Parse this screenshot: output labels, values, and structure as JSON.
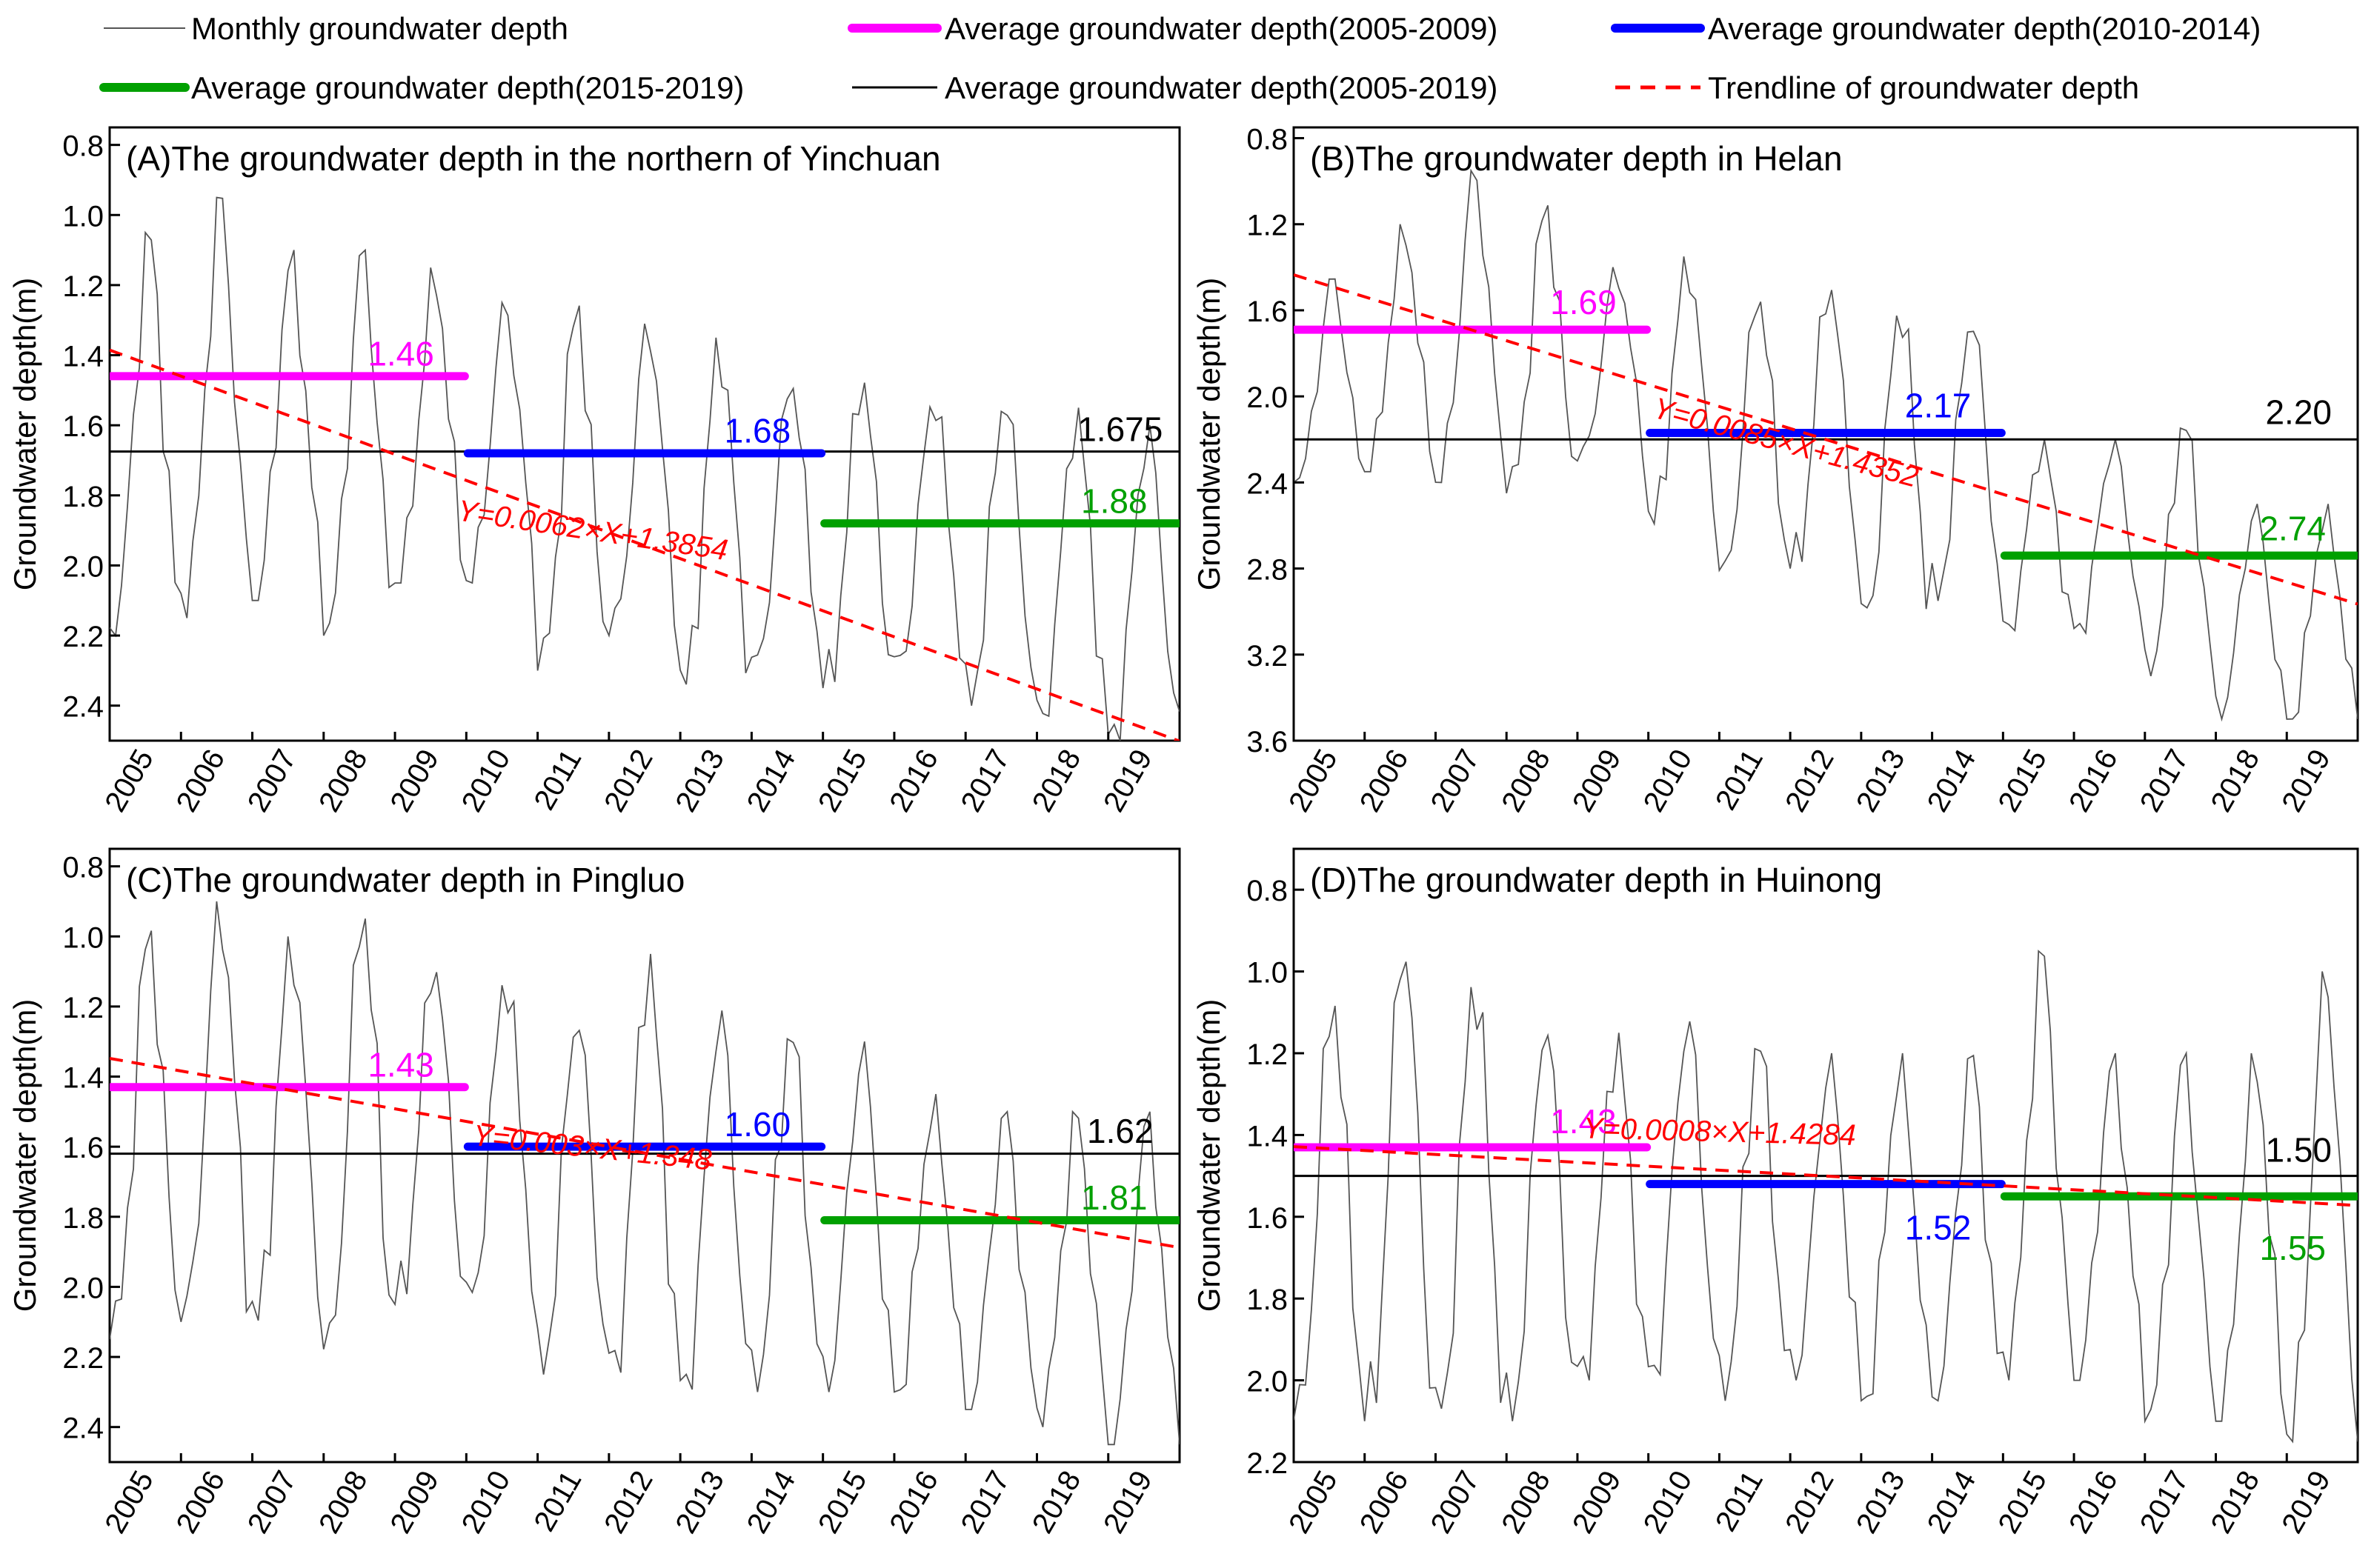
{
  "legend": [
    {
      "label": "Monthly groundwater depth",
      "kind": "monthly",
      "color": "#555555"
    },
    {
      "label": "Average groundwater depth(2005-2009)",
      "kind": "avg",
      "color": "#ff00ff"
    },
    {
      "label": "Average groundwater depth(2010-2014)",
      "kind": "avg",
      "color": "#0000ff"
    },
    {
      "label": "Average groundwater depth(2015-2019)",
      "kind": "avg",
      "color": "#00a000"
    },
    {
      "label": "Average groundwater depth(2005-2019)",
      "kind": "avgall",
      "color": "#000000"
    },
    {
      "label": "Trendline of groundwater depth",
      "kind": "trend",
      "color": "#ff0000"
    }
  ],
  "chart_data": [
    {
      "type": "line",
      "title": "(A)The groundwater depth in the northern of Yinchuan",
      "ylabel": "Groundwater depth(m)",
      "ylim": [
        0.75,
        2.5
      ],
      "y_inverted": true,
      "yticks": [
        "0.8",
        "1.0",
        "1.2",
        "1.4",
        "1.6",
        "1.8",
        "2.0",
        "2.2",
        "2.4"
      ],
      "xticks": [
        "2005",
        "2006",
        "2007",
        "2008",
        "2009",
        "2010",
        "2011",
        "2012",
        "2013",
        "2014",
        "2015",
        "2016",
        "2017",
        "2018",
        "2019"
      ],
      "period_averages": [
        {
          "period": "2005-2009",
          "value": 1.46,
          "label": "1.46"
        },
        {
          "period": "2010-2014",
          "value": 1.68,
          "label": "1.68"
        },
        {
          "period": "2015-2019",
          "value": 1.88,
          "label": "1.88"
        }
      ],
      "overall_average": {
        "period": "2005-2019",
        "value": 1.675,
        "label": "1.675"
      },
      "trendline": {
        "slope": 0.0062,
        "intercept": 1.3854,
        "equation": "Y=0.0062×X+1.3854"
      },
      "monthly_series": {
        "months": 180,
        "low": [
          1.05,
          0.95,
          1.1,
          1.1,
          1.15,
          1.25,
          1.25,
          1.3,
          1.35,
          1.45,
          1.45,
          1.5,
          1.5,
          1.55,
          1.6
        ],
        "high": [
          2.2,
          2.15,
          2.1,
          2.2,
          2.05,
          2.05,
          2.3,
          2.2,
          2.35,
          2.3,
          2.35,
          2.3,
          2.4,
          2.45,
          2.5
        ]
      }
    },
    {
      "type": "line",
      "title": "(B)The groundwater depth in Helan",
      "ylabel": "Groundwater depth(m)",
      "ylim": [
        0.75,
        3.6
      ],
      "y_inverted": true,
      "yticks": [
        "0.8",
        "1.2",
        "1.6",
        "2.0",
        "2.4",
        "2.8",
        "3.2",
        "3.6"
      ],
      "xticks": [
        "2005",
        "2006",
        "2007",
        "2008",
        "2009",
        "2010",
        "2011",
        "2012",
        "2013",
        "2014",
        "2015",
        "2016",
        "2017",
        "2018",
        "2019"
      ],
      "period_averages": [
        {
          "period": "2005-2009",
          "value": 1.69,
          "label": "1.69"
        },
        {
          "period": "2010-2014",
          "value": 2.17,
          "label": "2.17"
        },
        {
          "period": "2015-2019",
          "value": 2.74,
          "label": "2.74"
        }
      ],
      "overall_average": {
        "period": "2005-2019",
        "value": 2.2,
        "label": "2.20"
      },
      "trendline": {
        "slope": 0.0085,
        "intercept": 1.4352,
        "equation": "Y=0.0085×X+1.4352"
      },
      "monthly_series": {
        "months": 180,
        "low": [
          1.45,
          1.2,
          0.95,
          1.1,
          1.4,
          1.35,
          1.5,
          1.45,
          1.55,
          1.6,
          2.2,
          2.2,
          2.1,
          2.5,
          2.5
        ],
        "high": [
          2.4,
          2.35,
          2.4,
          2.45,
          2.3,
          2.6,
          2.85,
          2.8,
          3.05,
          2.95,
          3.1,
          3.1,
          3.3,
          3.5,
          3.5
        ]
      }
    },
    {
      "type": "line",
      "title": "(C)The groundwater depth in Pingluo",
      "ylabel": "Groundwater depth(m)",
      "ylim": [
        0.75,
        2.5
      ],
      "y_inverted": true,
      "yticks": [
        "0.8",
        "1.0",
        "1.2",
        "1.4",
        "1.6",
        "1.8",
        "2.0",
        "2.2",
        "2.4"
      ],
      "xticks": [
        "2005",
        "2006",
        "2007",
        "2008",
        "2009",
        "2010",
        "2011",
        "2012",
        "2013",
        "2014",
        "2015",
        "2016",
        "2017",
        "2018",
        "2019"
      ],
      "period_averages": [
        {
          "period": "2005-2009",
          "value": 1.43,
          "label": "1.43"
        },
        {
          "period": "2010-2014",
          "value": 1.6,
          "label": "1.60"
        },
        {
          "period": "2015-2019",
          "value": 1.81,
          "label": "1.81"
        }
      ],
      "overall_average": {
        "period": "2005-2019",
        "value": 1.62,
        "label": "1.62"
      },
      "trendline": {
        "slope": 0.003,
        "intercept": 1.348,
        "equation": "Y=0.003×X+1.348"
      },
      "monthly_series": {
        "months": 180,
        "low": [
          0.97,
          0.9,
          1.0,
          0.9,
          1.05,
          1.1,
          1.2,
          1.05,
          1.2,
          1.25,
          1.3,
          1.45,
          1.5,
          1.5,
          1.5
        ],
        "high": [
          2.15,
          2.1,
          2.1,
          2.2,
          2.05,
          2.05,
          2.25,
          2.25,
          2.3,
          2.3,
          2.3,
          2.3,
          2.35,
          2.4,
          2.45
        ]
      }
    },
    {
      "type": "line",
      "title": "(D)The groundwater depth in Huinong",
      "ylabel": "Groundwater depth(m)",
      "ylim": [
        0.7,
        2.2
      ],
      "y_inverted": true,
      "yticks": [
        "0.8",
        "1.0",
        "1.2",
        "1.4",
        "1.6",
        "1.8",
        "2.0",
        "2.2"
      ],
      "xticks": [
        "2005",
        "2006",
        "2007",
        "2008",
        "2009",
        "2010",
        "2011",
        "2012",
        "2013",
        "2014",
        "2015",
        "2016",
        "2017",
        "2018",
        "2019"
      ],
      "period_averages": [
        {
          "period": "2005-2009",
          "value": 1.43,
          "label": "1.43"
        },
        {
          "period": "2010-2014",
          "value": 1.52,
          "label": "1.52"
        },
        {
          "period": "2015-2019",
          "value": 1.55,
          "label": "1.55"
        }
      ],
      "overall_average": {
        "period": "2005-2019",
        "value": 1.5,
        "label": "1.50"
      },
      "trendline": {
        "slope": 0.0008,
        "intercept": 1.4284,
        "equation": "Y=0.0008×X+1.4284"
      },
      "monthly_series": {
        "months": 180,
        "low": [
          1.05,
          0.9,
          1.0,
          1.1,
          1.15,
          1.1,
          1.15,
          1.2,
          1.2,
          1.2,
          0.95,
          1.2,
          1.2,
          1.2,
          1.0
        ],
        "high": [
          2.1,
          2.1,
          2.1,
          2.1,
          2.0,
          2.0,
          2.05,
          2.0,
          2.05,
          2.05,
          2.0,
          2.0,
          2.1,
          2.1,
          2.15
        ]
      }
    }
  ]
}
